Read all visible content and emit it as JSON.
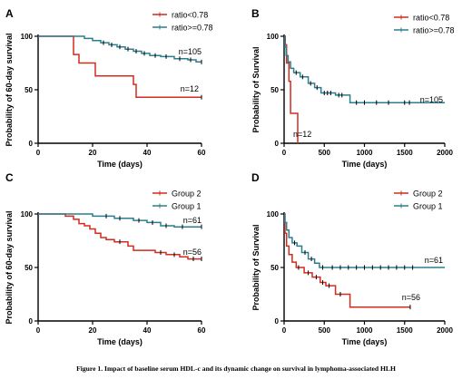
{
  "caption": "Figure 1. Impact of baseline serum HDL-c and its dynamic change on survival in lymphoma-associated HLH",
  "colors": {
    "red": "#d42a1f",
    "teal": "#2a7f8e",
    "axis": "#000000"
  },
  "chart_data": [
    {
      "type": "line",
      "panel_label": "A",
      "ylabel": "Probability of 60-day survival",
      "xlabel": "Time (days)",
      "xlim": [
        0,
        60
      ],
      "ylim": [
        0,
        100
      ],
      "xticks": [
        0,
        20,
        40,
        60
      ],
      "yticks": [
        0,
        50,
        100
      ],
      "legend_position": "top-right",
      "series": [
        {
          "name": "ratio<0.78",
          "color": "#d42a1f",
          "annotation": "n=12",
          "steps": [
            [
              0,
              100
            ],
            [
              13,
              100
            ],
            [
              13,
              83
            ],
            [
              15,
              83
            ],
            [
              15,
              75
            ],
            [
              21,
              75
            ],
            [
              21,
              63
            ],
            [
              35,
              63
            ],
            [
              35,
              55
            ],
            [
              36,
              55
            ],
            [
              36,
              43
            ],
            [
              60,
              43
            ]
          ],
          "censors": [
            [
              60,
              43
            ]
          ]
        },
        {
          "name": "ratio>=0.78",
          "color": "#2a7f8e",
          "annotation": "n=105",
          "steps": [
            [
              0,
              100
            ],
            [
              17,
              100
            ],
            [
              17,
              98
            ],
            [
              20,
              98
            ],
            [
              20,
              96
            ],
            [
              23,
              96
            ],
            [
              23,
              94
            ],
            [
              26,
              94
            ],
            [
              26,
              92
            ],
            [
              29,
              92
            ],
            [
              29,
              90
            ],
            [
              32,
              90
            ],
            [
              32,
              88
            ],
            [
              35,
              88
            ],
            [
              35,
              86
            ],
            [
              38,
              86
            ],
            [
              38,
              84
            ],
            [
              41,
              84
            ],
            [
              41,
              82
            ],
            [
              45,
              82
            ],
            [
              45,
              81
            ],
            [
              50,
              81
            ],
            [
              50,
              79
            ],
            [
              55,
              79
            ],
            [
              55,
              78
            ],
            [
              58,
              78
            ],
            [
              58,
              76
            ],
            [
              60,
              76
            ]
          ],
          "censors": [
            [
              24,
              94
            ],
            [
              27,
              92
            ],
            [
              30,
              90
            ],
            [
              33,
              88
            ],
            [
              36,
              86
            ],
            [
              39,
              84
            ],
            [
              43,
              82
            ],
            [
              47,
              81
            ],
            [
              52,
              79
            ],
            [
              56,
              78
            ],
            [
              60,
              76
            ]
          ]
        }
      ]
    },
    {
      "type": "line",
      "panel_label": "B",
      "ylabel": "Probability of Survival",
      "xlabel": "Time (days)",
      "xlim": [
        0,
        2000
      ],
      "ylim": [
        0,
        100
      ],
      "xticks": [
        0,
        500,
        1000,
        1500,
        2000
      ],
      "yticks": [
        0,
        50,
        100
      ],
      "legend_position": "top-right",
      "series": [
        {
          "name": "ratio<0.78",
          "color": "#d42a1f",
          "annotation": "n=12",
          "steps": [
            [
              0,
              100
            ],
            [
              15,
              100
            ],
            [
              15,
              92
            ],
            [
              30,
              92
            ],
            [
              30,
              75
            ],
            [
              60,
              75
            ],
            [
              60,
              58
            ],
            [
              80,
              58
            ],
            [
              80,
              28
            ],
            [
              170,
              28
            ],
            [
              170,
              0
            ]
          ],
          "censors": []
        },
        {
          "name": "ratio>=0.78",
          "color": "#2a7f8e",
          "annotation": "n=105",
          "steps": [
            [
              0,
              100
            ],
            [
              10,
              100
            ],
            [
              10,
              90
            ],
            [
              25,
              90
            ],
            [
              25,
              82
            ],
            [
              50,
              82
            ],
            [
              50,
              76
            ],
            [
              80,
              76
            ],
            [
              80,
              70
            ],
            [
              120,
              70
            ],
            [
              120,
              66
            ],
            [
              200,
              66
            ],
            [
              200,
              62
            ],
            [
              300,
              62
            ],
            [
              300,
              56
            ],
            [
              380,
              56
            ],
            [
              380,
              52
            ],
            [
              460,
              52
            ],
            [
              460,
              47
            ],
            [
              640,
              47
            ],
            [
              640,
              45
            ],
            [
              820,
              45
            ],
            [
              820,
              38
            ],
            [
              2000,
              38
            ]
          ],
          "censors": [
            [
              150,
              66
            ],
            [
              230,
              62
            ],
            [
              330,
              56
            ],
            [
              410,
              52
            ],
            [
              500,
              47
            ],
            [
              540,
              47
            ],
            [
              580,
              47
            ],
            [
              680,
              45
            ],
            [
              720,
              45
            ],
            [
              900,
              38
            ],
            [
              1000,
              38
            ],
            [
              1150,
              38
            ],
            [
              1300,
              38
            ],
            [
              1500,
              38
            ],
            [
              1560,
              38
            ]
          ]
        }
      ]
    },
    {
      "type": "line",
      "panel_label": "C",
      "ylabel": "Probability of 60-day survival",
      "xlabel": "Time (days)",
      "xlim": [
        0,
        60
      ],
      "ylim": [
        0,
        100
      ],
      "xticks": [
        0,
        20,
        40,
        60
      ],
      "yticks": [
        0,
        50,
        100
      ],
      "legend_position": "top-right",
      "series": [
        {
          "name": "Group 2",
          "color": "#d42a1f",
          "annotation": "n=56",
          "steps": [
            [
              0,
              100
            ],
            [
              10,
              100
            ],
            [
              10,
              98
            ],
            [
              13,
              98
            ],
            [
              13,
              95
            ],
            [
              15,
              95
            ],
            [
              15,
              91
            ],
            [
              17,
              91
            ],
            [
              17,
              89
            ],
            [
              19,
              89
            ],
            [
              19,
              86
            ],
            [
              21,
              86
            ],
            [
              21,
              82
            ],
            [
              23,
              82
            ],
            [
              23,
              78
            ],
            [
              25,
              78
            ],
            [
              25,
              76
            ],
            [
              28,
              76
            ],
            [
              28,
              74
            ],
            [
              33,
              74
            ],
            [
              33,
              70
            ],
            [
              35,
              70
            ],
            [
              35,
              66
            ],
            [
              43,
              66
            ],
            [
              43,
              64
            ],
            [
              47,
              64
            ],
            [
              47,
              62
            ],
            [
              52,
              62
            ],
            [
              52,
              60
            ],
            [
              55,
              60
            ],
            [
              55,
              58
            ],
            [
              60,
              58
            ]
          ],
          "censors": [
            [
              30,
              74
            ],
            [
              45,
              64
            ],
            [
              50,
              62
            ],
            [
              57,
              58
            ],
            [
              60,
              58
            ]
          ]
        },
        {
          "name": "Group 1",
          "color": "#2a7f8e",
          "annotation": "n=61",
          "steps": [
            [
              0,
              100
            ],
            [
              20,
              100
            ],
            [
              20,
              98
            ],
            [
              28,
              98
            ],
            [
              28,
              96
            ],
            [
              35,
              96
            ],
            [
              35,
              94
            ],
            [
              40,
              94
            ],
            [
              40,
              92
            ],
            [
              45,
              92
            ],
            [
              45,
              89
            ],
            [
              50,
              89
            ],
            [
              50,
              88
            ],
            [
              60,
              88
            ]
          ],
          "censors": [
            [
              25,
              98
            ],
            [
              30,
              96
            ],
            [
              37,
              94
            ],
            [
              42,
              92
            ],
            [
              47,
              89
            ],
            [
              53,
              88
            ],
            [
              60,
              88
            ]
          ]
        }
      ]
    },
    {
      "type": "line",
      "panel_label": "D",
      "ylabel": "Probability of Survival",
      "xlabel": "Time (days)",
      "xlim": [
        0,
        2000
      ],
      "ylim": [
        0,
        100
      ],
      "xticks": [
        0,
        500,
        1000,
        1500,
        2000
      ],
      "yticks": [
        0,
        50,
        100
      ],
      "legend_position": "top-right",
      "series": [
        {
          "name": "Group 2",
          "color": "#d42a1f",
          "annotation": "n=56",
          "steps": [
            [
              0,
              100
            ],
            [
              10,
              100
            ],
            [
              10,
              82
            ],
            [
              30,
              82
            ],
            [
              30,
              70
            ],
            [
              60,
              70
            ],
            [
              60,
              62
            ],
            [
              100,
              62
            ],
            [
              100,
              55
            ],
            [
              150,
              55
            ],
            [
              150,
              50
            ],
            [
              250,
              50
            ],
            [
              250,
              45
            ],
            [
              350,
              45
            ],
            [
              350,
              41
            ],
            [
              450,
              41
            ],
            [
              450,
              36
            ],
            [
              520,
              36
            ],
            [
              520,
              33
            ],
            [
              640,
              33
            ],
            [
              640,
              25
            ],
            [
              820,
              25
            ],
            [
              820,
              13
            ],
            [
              1570,
              13
            ]
          ],
          "censors": [
            [
              180,
              50
            ],
            [
              300,
              45
            ],
            [
              400,
              41
            ],
            [
              480,
              36
            ],
            [
              560,
              33
            ],
            [
              700,
              25
            ],
            [
              1570,
              13
            ]
          ]
        },
        {
          "name": "Group 1",
          "color": "#2a7f8e",
          "annotation": "n=61",
          "steps": [
            [
              0,
              100
            ],
            [
              10,
              100
            ],
            [
              10,
              92
            ],
            [
              30,
              92
            ],
            [
              30,
              85
            ],
            [
              60,
              85
            ],
            [
              60,
              78
            ],
            [
              100,
              78
            ],
            [
              100,
              73
            ],
            [
              160,
              73
            ],
            [
              160,
              70
            ],
            [
              220,
              70
            ],
            [
              220,
              64
            ],
            [
              300,
              64
            ],
            [
              300,
              58
            ],
            [
              380,
              58
            ],
            [
              380,
              54
            ],
            [
              440,
              54
            ],
            [
              440,
              50
            ],
            [
              2000,
              50
            ]
          ],
          "censors": [
            [
              130,
              73
            ],
            [
              260,
              64
            ],
            [
              340,
              58
            ],
            [
              480,
              50
            ],
            [
              600,
              50
            ],
            [
              700,
              50
            ],
            [
              800,
              50
            ],
            [
              900,
              50
            ],
            [
              1000,
              50
            ],
            [
              1100,
              50
            ],
            [
              1200,
              50
            ],
            [
              1300,
              50
            ],
            [
              1400,
              50
            ],
            [
              1500,
              50
            ],
            [
              1600,
              50
            ]
          ]
        }
      ]
    }
  ]
}
